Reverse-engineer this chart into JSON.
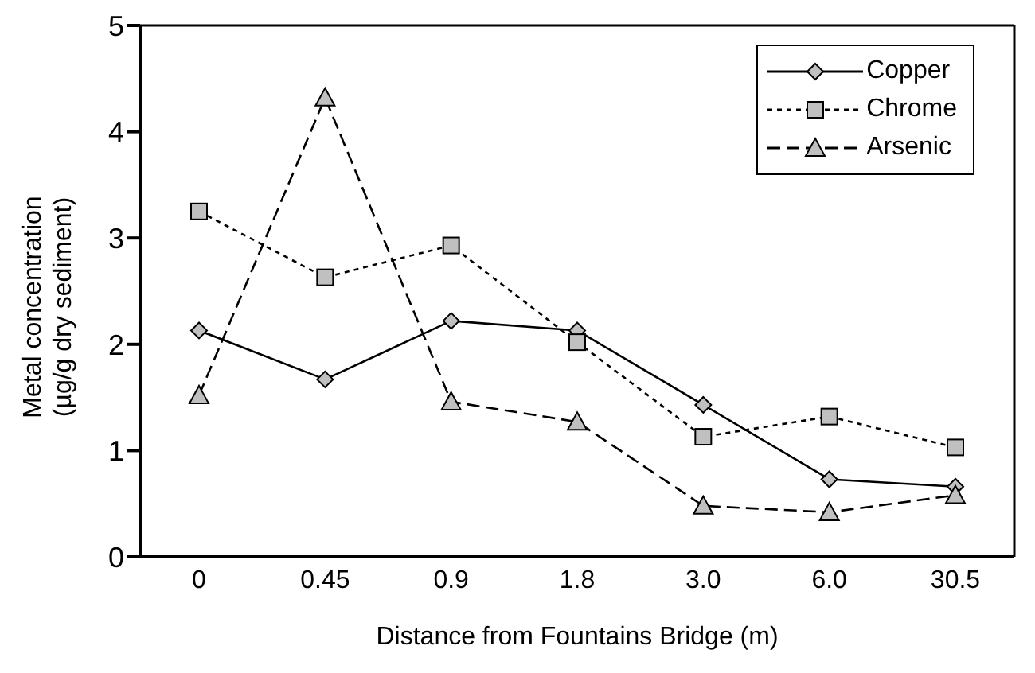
{
  "chart_data": {
    "type": "line",
    "xlabel": "Distance from Fountains Bridge (m)",
    "ylabel": "Metal concentration\n(µg/g dry sediment)",
    "categories": [
      "0",
      "0.45",
      "0.9",
      "1.8",
      "3.0",
      "6.0",
      "30.5"
    ],
    "series": [
      {
        "name": "Copper",
        "color": "#000000",
        "marker": "diamond",
        "line_style": "solid",
        "values": [
          2.13,
          1.67,
          2.22,
          2.13,
          1.43,
          0.73,
          0.66
        ]
      },
      {
        "name": "Chrome",
        "color": "#000000",
        "marker": "square",
        "line_style": "dotted",
        "values": [
          3.25,
          2.63,
          2.93,
          2.02,
          1.13,
          1.32,
          1.03
        ]
      },
      {
        "name": "Arsenic",
        "color": "#000000",
        "marker": "triangle",
        "line_style": "dashed",
        "values": [
          1.52,
          4.32,
          1.46,
          1.27,
          0.48,
          0.42,
          0.58
        ]
      }
    ],
    "ylim": [
      0,
      5
    ],
    "yticks": [
      0,
      1,
      2,
      3,
      4,
      5
    ],
    "legend": "top right",
    "grid": false
  }
}
